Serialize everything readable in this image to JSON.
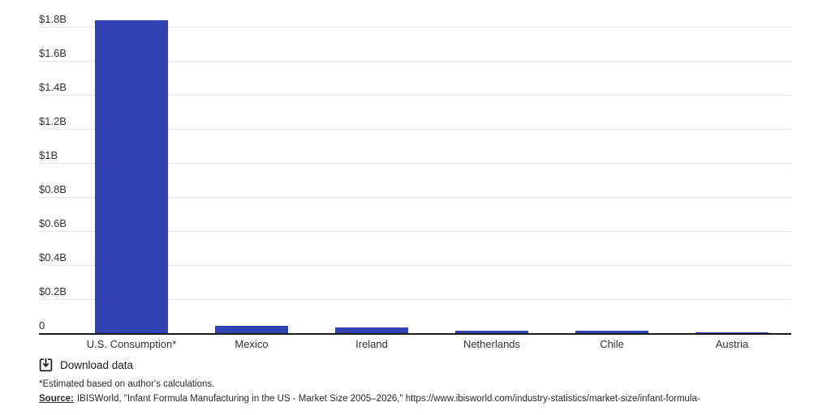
{
  "chart_data": {
    "type": "bar",
    "title": "",
    "xlabel": "",
    "ylabel": "",
    "unit": "USD billions",
    "grid": true,
    "legend": false,
    "ylim": [
      0,
      1.9
    ],
    "categories": [
      "U.S. Consumption*",
      "Mexico",
      "Ireland",
      "Netherlands",
      "Chile",
      "Austria"
    ],
    "values_billions": [
      1.84,
      0.045,
      0.031,
      0.014,
      0.012,
      0.003
    ],
    "y_ticks": [
      {
        "value": 0,
        "label": "0"
      },
      {
        "value": 0.2,
        "label": "$0.2B"
      },
      {
        "value": 0.4,
        "label": "$0.4B"
      },
      {
        "value": 0.6,
        "label": "$0.6B"
      },
      {
        "value": 0.8,
        "label": "$0.8B"
      },
      {
        "value": 1.0,
        "label": "$1B"
      },
      {
        "value": 1.2,
        "label": "$1.2B"
      },
      {
        "value": 1.4,
        "label": "$1.4B"
      },
      {
        "value": 1.6,
        "label": "$1.6B"
      },
      {
        "value": 1.8,
        "label": "$1.8B"
      }
    ],
    "colors": {
      "bar": "#3342b3",
      "gridline": "#e7e7e7",
      "axis": "#1a1a1a",
      "text": "#333333"
    }
  },
  "footer": {
    "download_label": "Download data",
    "footnote": "*Estimated based on author's calculations.",
    "source_label": "Source:",
    "source_text": "IBISWorld, \"Infant Formula Manufacturing in the US - Market Size 2005–2026,\" https://www.ibisworld.com/industry-statistics/market-size/infant-formula-"
  }
}
